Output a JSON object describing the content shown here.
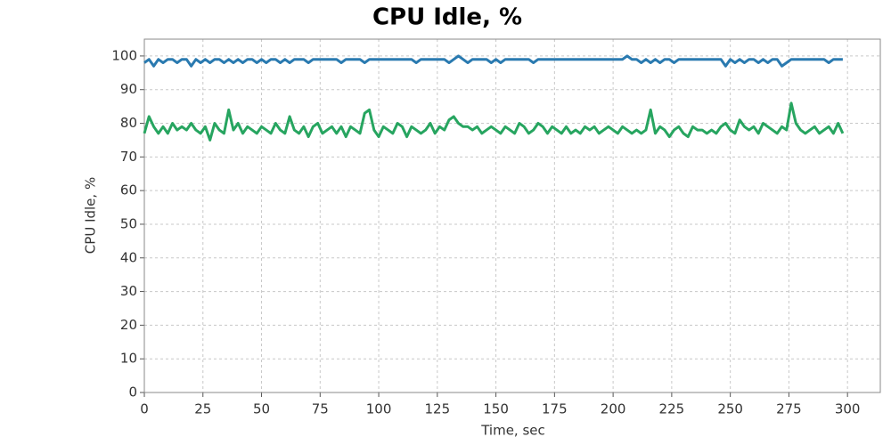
{
  "chart_data": {
    "type": "line",
    "title": "CPU Idle, %",
    "xlabel": "Time, sec",
    "ylabel": "CPU Idle, %",
    "x": [
      0,
      2,
      4,
      6,
      8,
      10,
      12,
      14,
      16,
      18,
      20,
      22,
      24,
      26,
      28,
      30,
      32,
      34,
      36,
      38,
      40,
      42,
      44,
      46,
      48,
      50,
      52,
      54,
      56,
      58,
      60,
      62,
      64,
      66,
      68,
      70,
      72,
      74,
      76,
      78,
      80,
      82,
      84,
      86,
      88,
      90,
      92,
      94,
      96,
      98,
      100,
      102,
      104,
      106,
      108,
      110,
      112,
      114,
      116,
      118,
      120,
      122,
      124,
      126,
      128,
      130,
      132,
      134,
      136,
      138,
      140,
      142,
      144,
      146,
      148,
      150,
      152,
      154,
      156,
      158,
      160,
      162,
      164,
      166,
      168,
      170,
      172,
      174,
      176,
      178,
      180,
      182,
      184,
      186,
      188,
      190,
      192,
      194,
      196,
      198,
      200,
      202,
      204,
      206,
      208,
      210,
      212,
      214,
      216,
      218,
      220,
      222,
      224,
      226,
      228,
      230,
      232,
      234,
      236,
      238,
      240,
      242,
      244,
      246,
      248,
      250,
      252,
      254,
      256,
      258,
      260,
      262,
      264,
      266,
      268,
      270,
      272,
      274,
      276,
      278,
      280,
      282,
      284,
      286,
      288,
      290,
      292,
      294,
      296,
      298
    ],
    "series": [
      {
        "color": "#2a7ab0",
        "values": [
          98,
          99,
          97,
          99,
          98,
          99,
          99,
          98,
          99,
          99,
          97,
          99,
          98,
          99,
          98,
          99,
          99,
          98,
          99,
          98,
          99,
          98,
          99,
          99,
          98,
          99,
          98,
          99,
          99,
          98,
          99,
          98,
          99,
          99,
          99,
          98,
          99,
          99,
          99,
          99,
          99,
          99,
          98,
          99,
          99,
          99,
          99,
          98,
          99,
          99,
          99,
          99,
          99,
          99,
          99,
          99,
          99,
          99,
          98,
          99,
          99,
          99,
          99,
          99,
          99,
          98,
          99,
          100,
          99,
          98,
          99,
          99,
          99,
          99,
          98,
          99,
          98,
          99,
          99,
          99,
          99,
          99,
          99,
          98,
          99,
          99,
          99,
          99,
          99,
          99,
          99,
          99,
          99,
          99,
          99,
          99,
          99,
          99,
          99,
          99,
          99,
          99,
          99,
          100,
          99,
          99,
          98,
          99,
          98,
          99,
          98,
          99,
          99,
          98,
          99,
          99,
          99,
          99,
          99,
          99,
          99,
          99,
          99,
          99,
          97,
          99,
          98,
          99,
          98,
          99,
          99,
          98,
          99,
          98,
          99,
          99,
          97,
          98,
          99,
          99,
          99,
          99,
          99,
          99,
          99,
          99,
          98,
          99,
          99,
          99
        ]
      },
      {
        "color": "#27a560",
        "values": [
          77,
          82,
          79,
          77,
          79,
          77,
          80,
          78,
          79,
          78,
          80,
          78,
          77,
          79,
          75,
          80,
          78,
          77,
          84,
          78,
          80,
          77,
          79,
          78,
          77,
          79,
          78,
          77,
          80,
          78,
          77,
          82,
          78,
          77,
          79,
          76,
          79,
          80,
          77,
          78,
          79,
          77,
          79,
          76,
          79,
          78,
          77,
          83,
          84,
          78,
          76,
          79,
          78,
          77,
          80,
          79,
          76,
          79,
          78,
          77,
          78,
          80,
          77,
          79,
          78,
          81,
          82,
          80,
          79,
          79,
          78,
          79,
          77,
          78,
          79,
          78,
          77,
          79,
          78,
          77,
          80,
          79,
          77,
          78,
          80,
          79,
          77,
          79,
          78,
          77,
          79,
          77,
          78,
          77,
          79,
          78,
          79,
          77,
          78,
          79,
          78,
          77,
          79,
          78,
          77,
          78,
          77,
          78,
          84,
          77,
          79,
          78,
          76,
          78,
          79,
          77,
          76,
          79,
          78,
          78,
          77,
          78,
          77,
          79,
          80,
          78,
          77,
          81,
          79,
          78,
          79,
          77,
          80,
          79,
          78,
          77,
          79,
          78,
          86,
          80,
          78,
          77,
          78,
          79,
          77,
          78,
          79,
          77,
          80,
          77
        ]
      }
    ],
    "xlim": [
      0,
      314
    ],
    "xticks": [
      0,
      25,
      50,
      75,
      100,
      125,
      150,
      175,
      200,
      225,
      250,
      275,
      300
    ],
    "ylim": [
      0,
      105
    ],
    "yticks": [
      0,
      10,
      20,
      30,
      40,
      50,
      60,
      70,
      80,
      90,
      100
    ],
    "grid": true
  }
}
